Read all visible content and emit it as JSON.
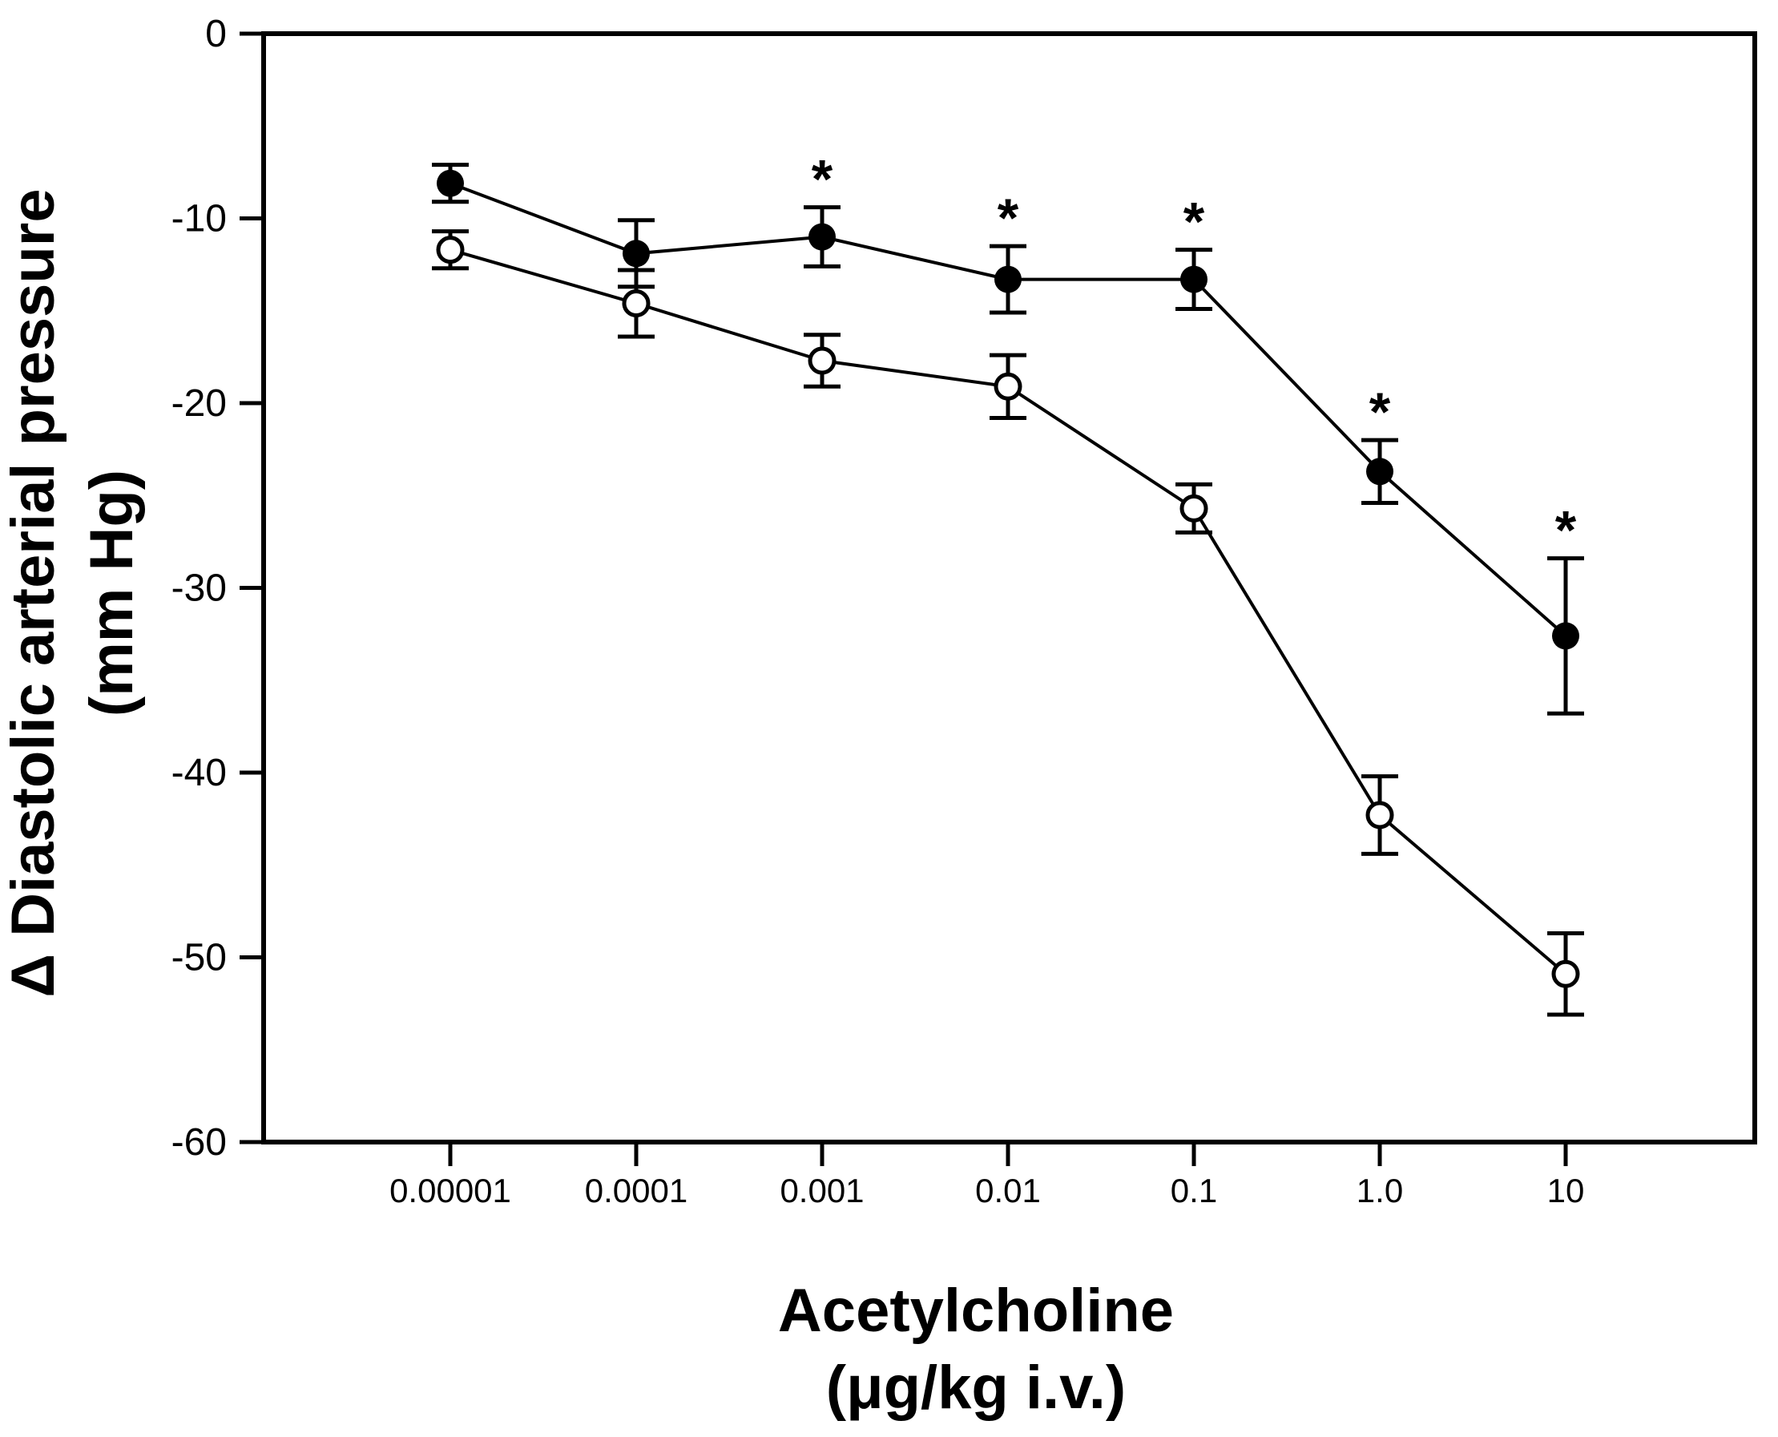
{
  "colors": {
    "foreground": "#000000",
    "background": "#ffffff"
  },
  "chart_data": {
    "type": "line",
    "title": "",
    "xlabel": "Acetylcholine (μg/kg i.v.)",
    "xlabel_lines": [
      "Acetylcholine",
      "(μg/kg i.v.)"
    ],
    "ylabel": "Δ Diastolic arterial pressure (mm Hg)",
    "ylabel_lines": [
      "Δ Diastolic arterial pressure",
      "(mm Hg)"
    ],
    "x_categories": [
      "0.00001",
      "0.0001",
      "0.001",
      "0.01",
      "0.1",
      "1.0",
      "10"
    ],
    "x_scale": "log-categorical",
    "y_ticks": [
      0,
      -10,
      -20,
      -30,
      -40,
      -50,
      -60
    ],
    "ylim": [
      -60,
      0
    ],
    "grid": false,
    "legend": "none",
    "significance_marker": "*",
    "series": [
      {
        "name": "filled-circles",
        "marker": "filled-circle",
        "color": "#000000",
        "values": [
          -8.1,
          -11.9,
          -11.0,
          -13.3,
          -13.3,
          -23.7,
          -32.6
        ],
        "errors": [
          1.0,
          1.8,
          1.6,
          1.8,
          1.6,
          1.7,
          4.2
        ],
        "significant": [
          false,
          false,
          true,
          true,
          true,
          true,
          true
        ]
      },
      {
        "name": "open-circles",
        "marker": "open-circle",
        "color": "#000000",
        "values": [
          -11.7,
          -14.6,
          -17.7,
          -19.1,
          -25.7,
          -42.3,
          -50.9
        ],
        "errors": [
          1.0,
          1.8,
          1.4,
          1.7,
          1.3,
          2.1,
          2.2
        ],
        "significant": [
          false,
          false,
          false,
          false,
          false,
          false,
          false
        ]
      }
    ]
  }
}
